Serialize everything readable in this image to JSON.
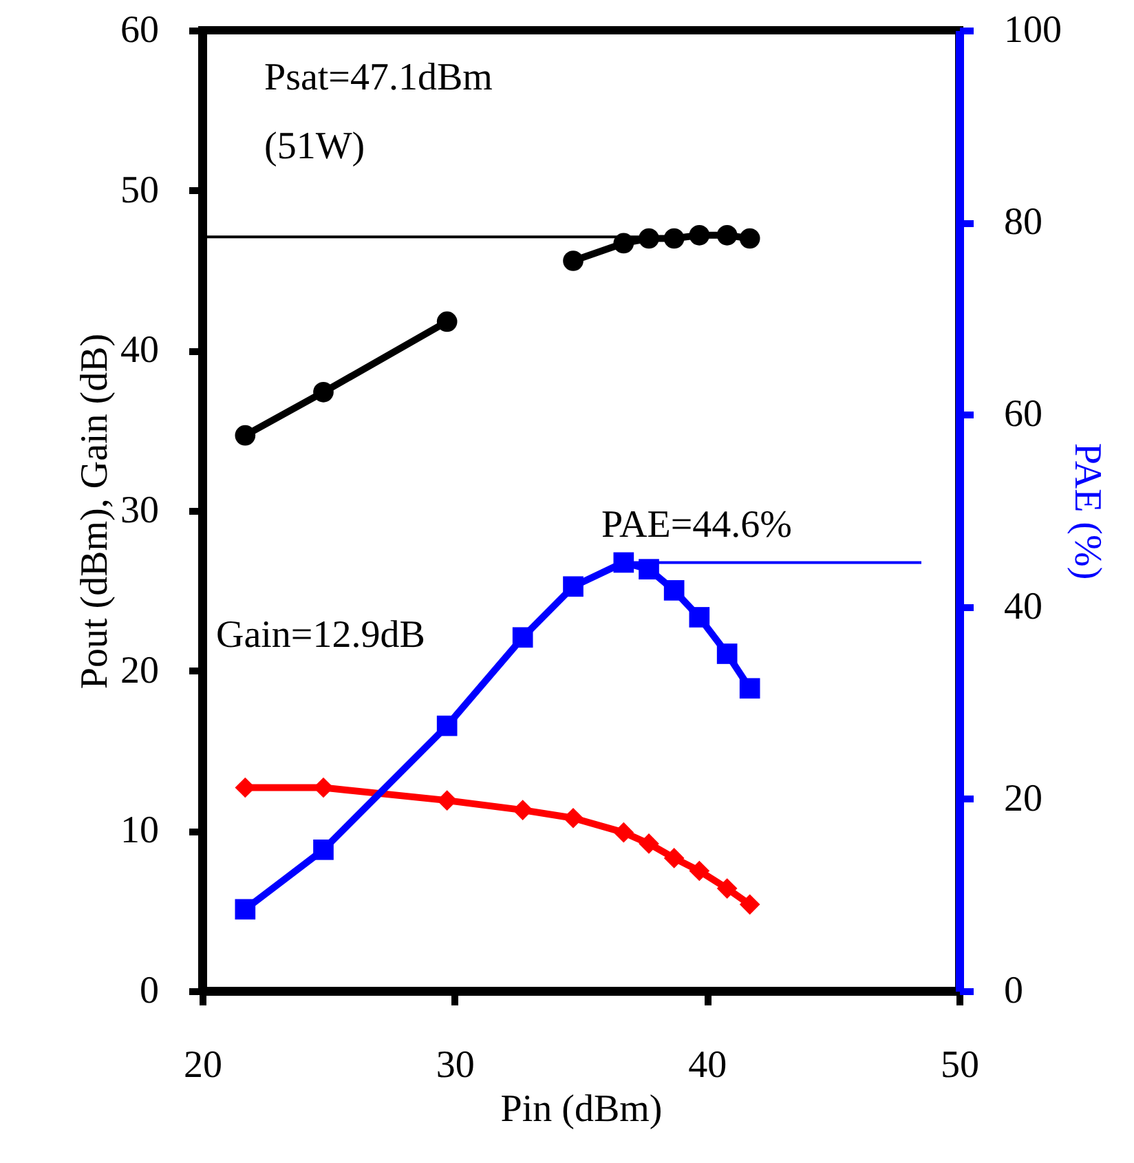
{
  "chart_data": {
    "type": "line",
    "xlabel": "Pin (dBm)",
    "ylabel": "Pout (dBm), Gain (dB)",
    "y2label": "PAE (%)",
    "x": [
      21.7,
      24.8,
      29.7,
      32.7,
      34.7,
      36.7,
      37.7,
      38.7,
      39.7,
      40.8,
      41.7
    ],
    "series": [
      {
        "color": "#000000",
        "marker": "circle",
        "values": [
          34.7,
          37.4,
          41.8,
          null,
          45.6,
          46.7,
          47.0,
          47.0,
          47.2,
          47.2,
          47.0
        ]
      },
      {
        "color": "#ff0000",
        "marker": "diamond",
        "values": [
          12.7,
          12.7,
          11.9,
          11.3,
          10.8,
          9.9,
          9.2,
          8.3,
          7.5,
          6.4,
          5.4
        ]
      },
      {
        "color": "#0000ff",
        "marker": "square",
        "axis": "y2",
        "values": [
          8.5,
          14.7,
          27.6,
          36.8,
          42.1,
          44.6,
          43.9,
          41.7,
          38.9,
          35.1,
          31.5
        ]
      }
    ],
    "xlim": [
      20,
      50
    ],
    "xticks": [
      20,
      30,
      40,
      50
    ],
    "ylim": [
      0,
      60
    ],
    "yticks": [
      0,
      10,
      20,
      30,
      40,
      50,
      60
    ],
    "y2lim": [
      0,
      100
    ],
    "y2ticks": [
      0,
      20,
      40,
      60,
      80,
      100
    ],
    "ref_lines": [
      {
        "axis": "y",
        "value": 47.1,
        "color": "#000000"
      },
      {
        "axis": "y2",
        "value": 44.6,
        "color": "#0000ff"
      }
    ],
    "annotations": [
      "Psat=47.1dBm",
      "(51W)",
      "PAE=44.6%",
      "Gain=12.9dB"
    ],
    "grid": false
  }
}
